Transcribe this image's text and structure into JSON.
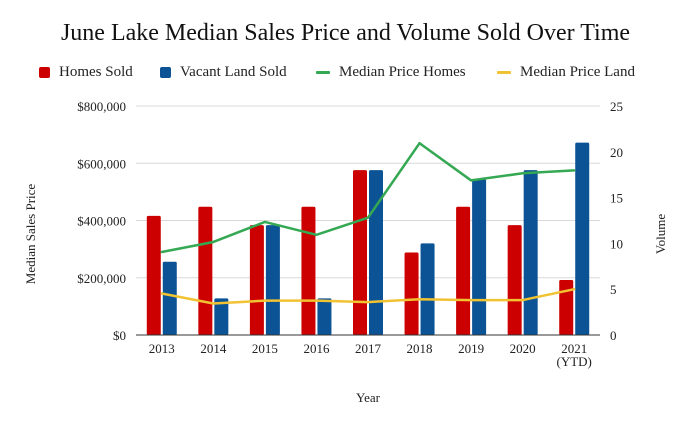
{
  "chart_data": {
    "type": "bar",
    "title": "June Lake Median Sales Price and Volume Sold Over Time",
    "xlabel": "Year",
    "ylabel_left": "Median Sales Price",
    "ylabel_right": "Volume",
    "categories": [
      "2013",
      "2014",
      "2015",
      "2016",
      "2017",
      "2018",
      "2019",
      "2020",
      "2021\n(YTD)"
    ],
    "left_axis": {
      "min": 0,
      "max": 800000,
      "ticks": [
        "$0",
        "$200,000",
        "$400,000",
        "$600,000",
        "$800,000"
      ]
    },
    "right_axis": {
      "min": 0,
      "max": 25,
      "ticks": [
        "0",
        "5",
        "10",
        "15",
        "20",
        "25"
      ]
    },
    "grid": true,
    "legend_position": "top",
    "series": [
      {
        "name": "Homes Sold",
        "kind": "bar",
        "axis": "right",
        "color": "#cc0000",
        "values": [
          13,
          14,
          12,
          14,
          18,
          9,
          14,
          12,
          6
        ]
      },
      {
        "name": "Vacant Land Sold",
        "kind": "bar",
        "axis": "right",
        "color": "#0b5394",
        "values": [
          8,
          4,
          12,
          4,
          18,
          10,
          17,
          18,
          21
        ]
      },
      {
        "name": "Median Price Homes",
        "kind": "line",
        "axis": "left",
        "color": "#34a853",
        "values": [
          290000,
          325000,
          395000,
          350000,
          410000,
          670000,
          540000,
          565000,
          575000
        ]
      },
      {
        "name": "Median Price Land",
        "kind": "line",
        "axis": "left",
        "color": "#f1c232",
        "values": [
          145000,
          110000,
          120000,
          120000,
          115000,
          125000,
          122000,
          122000,
          160000
        ]
      }
    ]
  }
}
